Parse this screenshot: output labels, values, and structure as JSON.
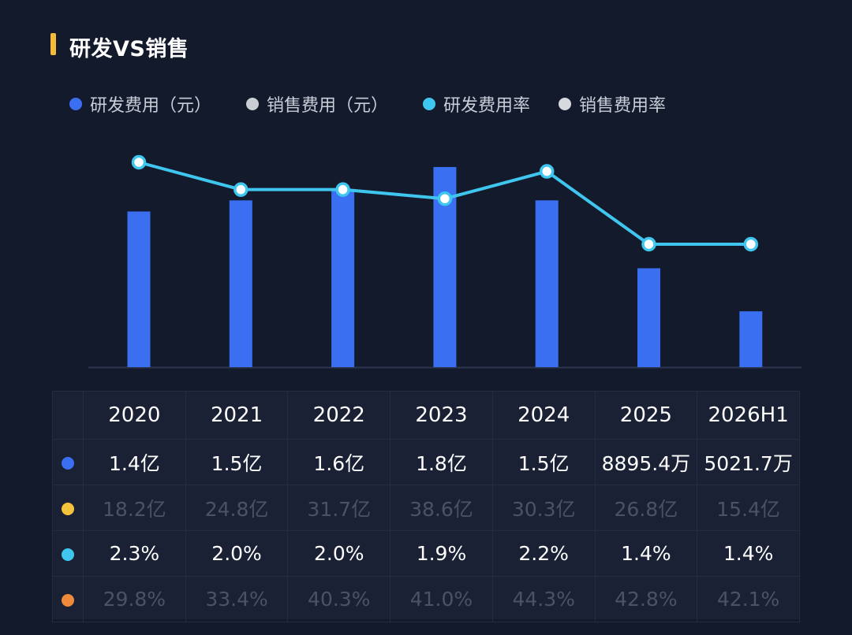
{
  "title": "研发VS销售",
  "colors": {
    "rd_expense": "#3b6ff2",
    "sales_expense": "#c9cdd4",
    "rd_rate": "#3fc6ee",
    "sales_rate": "#d6d9de",
    "row_marker_sales_expense": "#f5c33b",
    "row_marker_sales_rate": "#f08a3b",
    "title_accent": "#f5b93b"
  },
  "legend": [
    {
      "label": "研发费用（元）",
      "color": "#3b6ff2"
    },
    {
      "label": "销售费用（元）",
      "color": "#c9cdd4"
    },
    {
      "label": "研发费用率",
      "color": "#3fc6ee"
    },
    {
      "label": "销售费用率",
      "color": "#d6d9de"
    }
  ],
  "chart_data": {
    "type": "bar",
    "categories": [
      "2020",
      "2021",
      "2022",
      "2023",
      "2024",
      "2025",
      "2026H1"
    ],
    "series": [
      {
        "name": "研发费用（元）",
        "type": "bar",
        "values": [
          140000000,
          150000000,
          160000000,
          180000000,
          150000000,
          88954000,
          50217000
        ]
      },
      {
        "name": "研发费用率",
        "type": "line",
        "values": [
          2.3,
          2.0,
          2.0,
          1.9,
          2.2,
          1.4,
          1.4
        ]
      }
    ]
  },
  "table": {
    "headers": [
      "2020",
      "2021",
      "2022",
      "2023",
      "2024",
      "2025",
      "2026H1"
    ],
    "rows": [
      {
        "marker": "#3b6ff2",
        "style": "bright",
        "cells": [
          "1.4亿",
          "1.5亿",
          "1.6亿",
          "1.8亿",
          "1.5亿",
          "8895.4万",
          "5021.7万"
        ]
      },
      {
        "marker": "#f5c33b",
        "style": "dim",
        "cells": [
          "18.2亿",
          "24.8亿",
          "31.7亿",
          "38.6亿",
          "30.3亿",
          "26.8亿",
          "15.4亿"
        ]
      },
      {
        "marker": "#3fc6ee",
        "style": "bright",
        "cells": [
          "2.3%",
          "2.0%",
          "2.0%",
          "1.9%",
          "2.2%",
          "1.4%",
          "1.4%"
        ]
      },
      {
        "marker": "#f08a3b",
        "style": "dim",
        "cells": [
          "29.8%",
          "33.4%",
          "40.3%",
          "41.0%",
          "44.3%",
          "42.8%",
          "42.1%"
        ]
      }
    ]
  }
}
